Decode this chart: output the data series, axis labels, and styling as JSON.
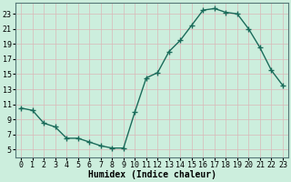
{
  "x": [
    0,
    1,
    2,
    3,
    4,
    5,
    6,
    7,
    8,
    9,
    10,
    11,
    12,
    13,
    14,
    15,
    16,
    17,
    18,
    19,
    20,
    21,
    22,
    23
  ],
  "y": [
    10.5,
    10.2,
    8.5,
    8.0,
    6.5,
    6.5,
    6.0,
    5.5,
    5.2,
    5.2,
    10.0,
    14.5,
    15.2,
    18.0,
    19.5,
    21.5,
    23.5,
    23.7,
    23.2,
    23.0,
    21.0,
    18.5,
    15.5,
    13.5
  ],
  "line_color": "#1a6b5a",
  "marker": "+",
  "marker_size": 4,
  "line_width": 1.0,
  "bg_color": "#cceedd",
  "grid_color_major": "#d9b8b8",
  "grid_color_minor": "#ddd0d0",
  "xlabel": "Humidex (Indice chaleur)",
  "xlabel_fontsize": 7,
  "yticks": [
    5,
    7,
    9,
    11,
    13,
    15,
    17,
    19,
    21,
    23
  ],
  "xticks": [
    0,
    1,
    2,
    3,
    4,
    5,
    6,
    7,
    8,
    9,
    10,
    11,
    12,
    13,
    14,
    15,
    16,
    17,
    18,
    19,
    20,
    21,
    22,
    23
  ],
  "ylim": [
    4.0,
    24.5
  ],
  "xlim": [
    -0.5,
    23.5
  ],
  "tick_fontsize": 6,
  "spine_color": "#557777"
}
